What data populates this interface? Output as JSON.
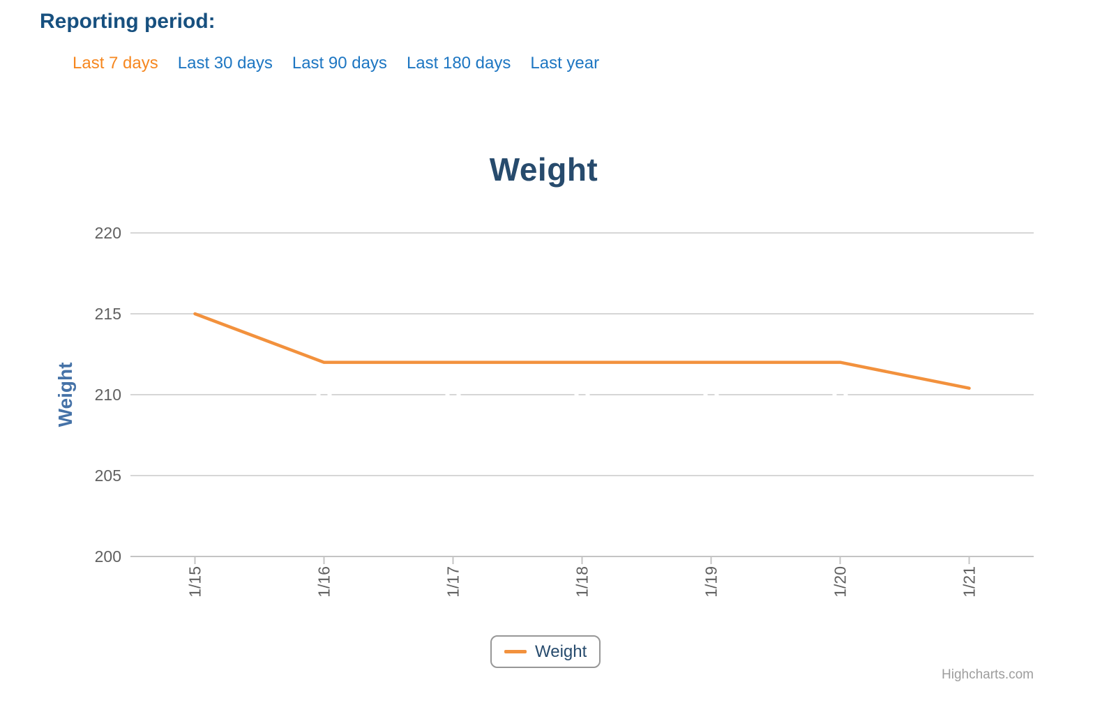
{
  "reporting_period": {
    "label": "Reporting period:",
    "selected": "Last 7 days",
    "options": [
      {
        "label": "Last 7 days",
        "selected": true
      },
      {
        "label": "Last 30 days",
        "selected": false
      },
      {
        "label": "Last 90 days",
        "selected": false
      },
      {
        "label": "Last 180 days",
        "selected": false
      },
      {
        "label": "Last year",
        "selected": false
      }
    ]
  },
  "chart_data": {
    "type": "line",
    "title": "Weight",
    "ylabel": "Weight",
    "categories": [
      "1/15",
      "1/16",
      "1/17",
      "1/18",
      "1/19",
      "1/20",
      "1/21"
    ],
    "series": [
      {
        "name": "Weight",
        "color": "#f2913d",
        "values": [
          215,
          212,
          212,
          212,
          212,
          212,
          210.4
        ]
      }
    ],
    "ylim": [
      200,
      220
    ],
    "yticks": [
      200,
      205,
      210,
      215,
      220
    ],
    "grid": true,
    "legend": {
      "position": "bottom-center",
      "items": [
        "Weight"
      ]
    },
    "credits": "Highcharts.com",
    "gridline_gaps": {
      "y_value": 210,
      "category_indices": [
        1,
        2,
        3,
        4,
        5
      ]
    }
  },
  "colors": {
    "header_text": "#17507f",
    "link": "#1d76c2",
    "link_active": "#f6871f",
    "title": "#274b6d",
    "series_orange": "#f2913d",
    "yaxis_title": "#4572a7",
    "axis_label": "#606060",
    "gridline": "#d6d6d6",
    "axis_line": "#c4c4c4",
    "tick": "#c4c4c4",
    "legend_border": "#979797",
    "legend_text": "#274b6d",
    "credits": "#9d9d9d"
  }
}
